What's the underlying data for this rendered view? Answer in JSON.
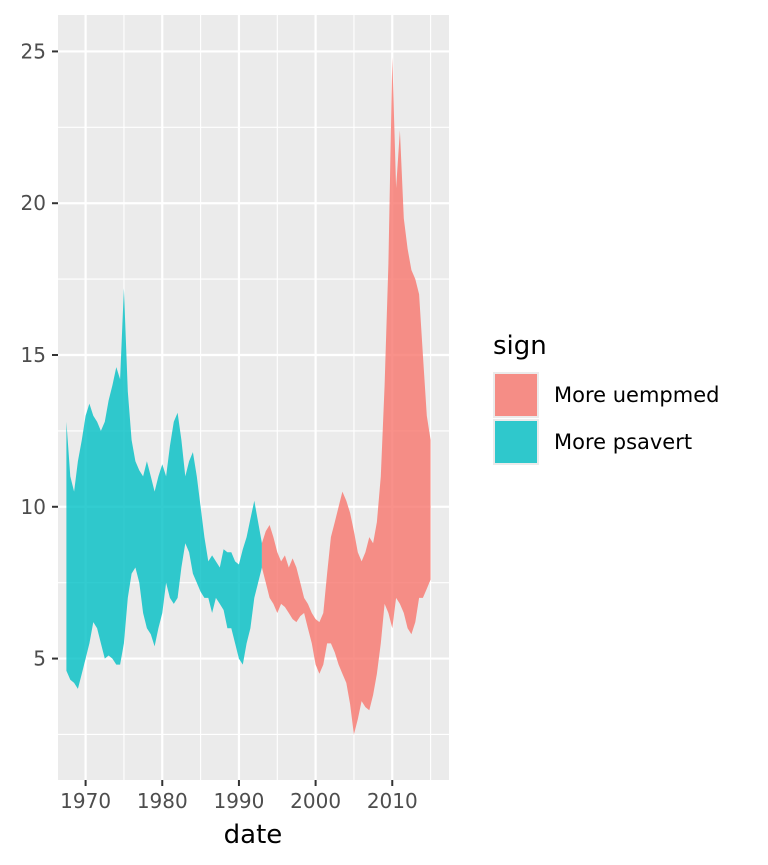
{
  "chart_data": {
    "type": "area",
    "xlabel": "date",
    "ylabel": "",
    "xlim": [
      1966.4,
      2017.4
    ],
    "ylim": [
      1.0,
      26.2
    ],
    "x_ticks": [
      1970,
      1980,
      1990,
      2000,
      2010
    ],
    "x_tick_labels": [
      "1970",
      "1980",
      "1990",
      "2000",
      "2010"
    ],
    "y_ticks": [
      5,
      10,
      15,
      20,
      25
    ],
    "y_tick_labels": [
      "5",
      "10",
      "15",
      "20",
      "25"
    ],
    "grid": true,
    "legend": {
      "title": "sign",
      "placement": "right",
      "entries": [
        {
          "label": "More uempmed",
          "color": "#F8766D"
        },
        {
          "label": "More psavert",
          "color": "#00BFC4"
        }
      ]
    },
    "series": [
      {
        "name": "More psavert",
        "color": "#00BFC4",
        "x": [
          1967.5,
          1968.0,
          1968.5,
          1969.0,
          1969.5,
          1970.0,
          1970.5,
          1971.0,
          1971.5,
          1972.0,
          1972.5,
          1973.0,
          1973.5,
          1974.0,
          1974.5,
          1975.0,
          1975.5,
          1976.0,
          1976.5,
          1977.0,
          1977.5,
          1978.0,
          1978.5,
          1979.0,
          1979.5,
          1980.0,
          1980.5,
          1981.0,
          1981.5,
          1982.0,
          1982.5,
          1983.0,
          1983.5,
          1984.0,
          1984.5,
          1985.0,
          1985.5,
          1986.0,
          1986.5,
          1987.0,
          1987.5,
          1988.0,
          1988.5,
          1989.0,
          1989.5,
          1990.0,
          1990.5,
          1991.0,
          1991.5,
          1992.0,
          1992.5,
          1993.0
        ],
        "high": [
          12.8,
          11.0,
          10.5,
          11.5,
          12.2,
          13.0,
          13.4,
          13.0,
          12.8,
          12.5,
          12.8,
          13.5,
          14.0,
          14.6,
          14.2,
          17.2,
          13.8,
          12.2,
          11.5,
          11.2,
          11.0,
          11.5,
          11.0,
          10.5,
          11.0,
          11.4,
          11.0,
          12.0,
          12.8,
          13.1,
          12.2,
          11.0,
          11.5,
          11.8,
          11.0,
          10.0,
          9.0,
          8.2,
          8.4,
          8.2,
          8.0,
          8.6,
          8.5,
          8.5,
          8.2,
          8.1,
          8.6,
          9.0,
          9.6,
          10.2,
          9.5,
          8.8
        ],
        "low": [
          4.6,
          4.3,
          4.2,
          4.0,
          4.5,
          5.0,
          5.5,
          6.2,
          6.0,
          5.5,
          5.0,
          5.1,
          5.0,
          4.8,
          4.8,
          5.5,
          7.0,
          7.8,
          8.0,
          7.5,
          6.5,
          6.0,
          5.8,
          5.4,
          6.0,
          6.5,
          7.5,
          7.0,
          6.8,
          7.0,
          8.0,
          8.8,
          8.5,
          7.8,
          7.5,
          7.2,
          7.0,
          7.0,
          6.5,
          7.0,
          6.8,
          6.6,
          6.0,
          6.0,
          5.5,
          5.0,
          4.8,
          5.5,
          6.0,
          7.0,
          7.5,
          8.0
        ]
      },
      {
        "name": "More uempmed",
        "color": "#F8766D",
        "x": [
          1993.0,
          1993.5,
          1994.0,
          1994.5,
          1995.0,
          1995.5,
          1996.0,
          1996.5,
          1997.0,
          1997.5,
          1998.0,
          1998.5,
          1999.0,
          1999.5,
          2000.0,
          2000.5,
          2001.0,
          2001.5,
          2002.0,
          2002.5,
          2003.0,
          2003.5,
          2004.0,
          2004.5,
          2005.0,
          2005.5,
          2006.0,
          2006.5,
          2007.0,
          2007.5,
          2008.0,
          2008.5,
          2009.0,
          2009.5,
          2010.0,
          2010.5,
          2011.0,
          2011.5,
          2012.0,
          2012.5,
          2013.0,
          2013.5,
          2014.0,
          2014.5,
          2015.0
        ],
        "high": [
          8.8,
          9.2,
          9.4,
          9.0,
          8.5,
          8.2,
          8.4,
          8.0,
          8.3,
          8.0,
          7.5,
          7.0,
          6.8,
          6.5,
          6.3,
          6.2,
          6.5,
          7.8,
          9.0,
          9.5,
          10.0,
          10.5,
          10.2,
          9.8,
          9.2,
          8.5,
          8.2,
          8.5,
          9.0,
          8.8,
          9.5,
          11.0,
          14.0,
          18.0,
          24.8,
          20.5,
          22.4,
          19.5,
          18.5,
          17.8,
          17.5,
          17.0,
          15.0,
          13.0,
          12.2
        ],
        "low": [
          8.0,
          7.5,
          7.0,
          6.8,
          6.5,
          6.8,
          6.7,
          6.5,
          6.3,
          6.2,
          6.4,
          6.5,
          6.0,
          5.5,
          4.8,
          4.5,
          4.8,
          5.5,
          5.5,
          5.2,
          4.8,
          4.5,
          4.2,
          3.5,
          2.5,
          3.0,
          3.6,
          3.4,
          3.3,
          3.8,
          4.5,
          5.5,
          6.8,
          6.5,
          6.0,
          7.0,
          6.8,
          6.5,
          6.0,
          5.8,
          6.2,
          7.0,
          7.0,
          7.3,
          7.6
        ]
      }
    ]
  }
}
